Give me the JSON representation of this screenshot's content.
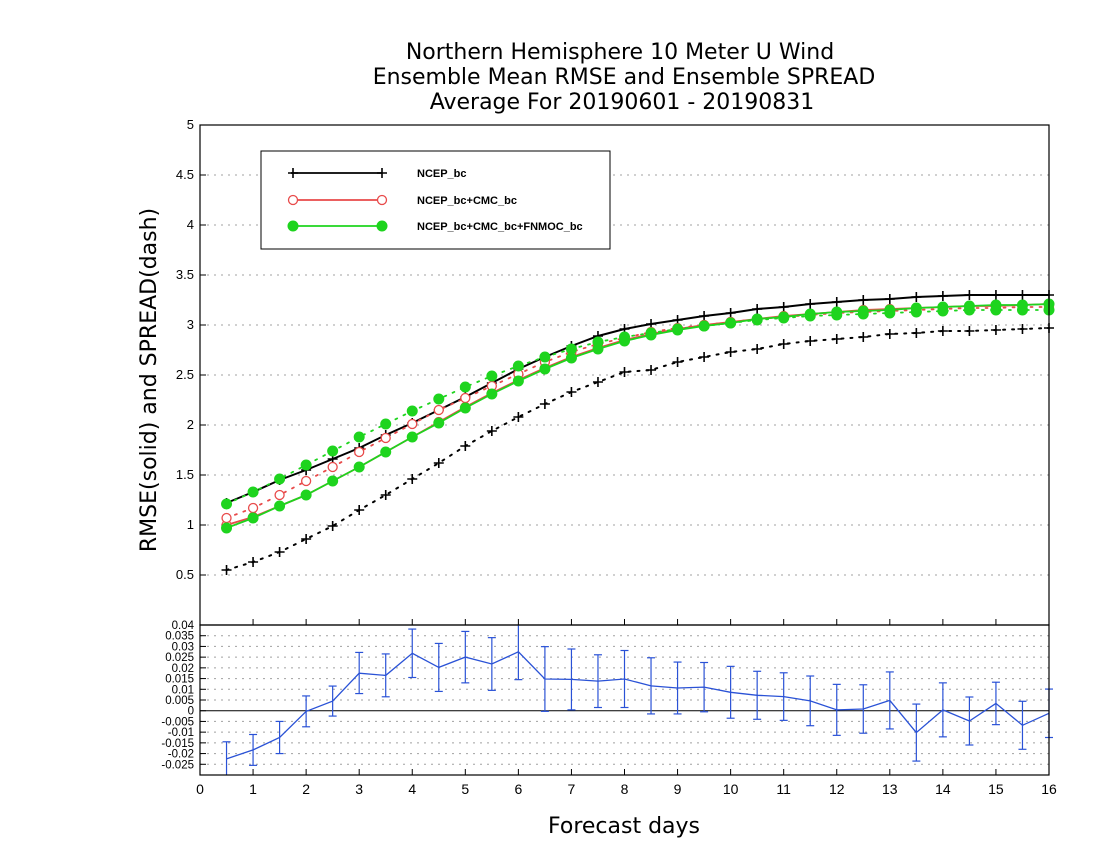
{
  "chart_data": [
    {
      "type": "line",
      "title": [
        "Northern Hemisphere 10 Meter U Wind",
        "Ensemble Mean RMSE and Ensemble SPREAD",
        "Average For 20190601 - 20190831"
      ],
      "ylabel": "RMSE(solid)  and  SPREAD(dash)",
      "xlabel": "Forecast days",
      "xlim": [
        0,
        16
      ],
      "ylim": [
        0,
        5
      ],
      "xticks": [
        "0",
        "1",
        "2",
        "3",
        "4",
        "5",
        "6",
        "7",
        "8",
        "9",
        "10",
        "11",
        "12",
        "13",
        "14",
        "15",
        "16"
      ],
      "yticks": [
        "0.5",
        "1",
        "1.5",
        "2",
        "2.5",
        "3",
        "3.5",
        "4",
        "4.5",
        "5"
      ],
      "grid": true,
      "legend_position": "top-left",
      "x": [
        0.5,
        1,
        1.5,
        2,
        2.5,
        3,
        3.5,
        4,
        4.5,
        5,
        5.5,
        6,
        6.5,
        7,
        7.5,
        8,
        8.5,
        9,
        9.5,
        10,
        10.5,
        11,
        11.5,
        12,
        12.5,
        13,
        13.5,
        14,
        14.5,
        15,
        15.5,
        16
      ],
      "series": [
        {
          "name": "NCEP_bc",
          "color": "#000000",
          "marker": "plus",
          "rmse": [
            1.22,
            1.33,
            1.45,
            1.55,
            1.66,
            1.77,
            1.9,
            2.02,
            2.15,
            2.28,
            2.42,
            2.56,
            2.68,
            2.79,
            2.89,
            2.96,
            3.01,
            3.05,
            3.09,
            3.12,
            3.16,
            3.18,
            3.21,
            3.23,
            3.25,
            3.26,
            3.28,
            3.29,
            3.3,
            3.3,
            3.3,
            3.3
          ],
          "spread": [
            0.55,
            0.63,
            0.73,
            0.86,
            0.99,
            1.15,
            1.3,
            1.46,
            1.62,
            1.79,
            1.94,
            2.08,
            2.21,
            2.33,
            2.43,
            2.53,
            2.55,
            2.63,
            2.68,
            2.73,
            2.76,
            2.81,
            2.84,
            2.86,
            2.88,
            2.91,
            2.92,
            2.94,
            2.94,
            2.95,
            2.96,
            2.97
          ]
        },
        {
          "name": "NCEP_bc+CMC_bc",
          "color": "#e84a4a",
          "marker": "open-circle",
          "rmse": [
            1.0,
            1.08,
            1.19,
            1.3,
            1.44,
            1.58,
            1.73,
            1.88,
            2.03,
            2.18,
            2.32,
            2.45,
            2.57,
            2.68,
            2.77,
            2.85,
            2.91,
            2.96,
            3.0,
            3.03,
            3.06,
            3.09,
            3.11,
            3.13,
            3.15,
            3.16,
            3.17,
            3.18,
            3.19,
            3.19,
            3.2,
            3.21
          ],
          "spread": [
            1.07,
            1.17,
            1.3,
            1.44,
            1.58,
            1.73,
            1.87,
            2.01,
            2.15,
            2.27,
            2.39,
            2.51,
            2.63,
            2.73,
            2.81,
            2.87,
            2.93,
            2.97,
            3.0,
            3.03,
            3.06,
            3.08,
            3.1,
            3.12,
            3.13,
            3.14,
            3.15,
            3.16,
            3.17,
            3.17,
            3.18,
            3.18
          ]
        },
        {
          "name": "NCEP_bc+CMC_bc+FNMOC_bc",
          "color": "#1ed41e",
          "marker": "filled-circle",
          "rmse": [
            0.97,
            1.07,
            1.19,
            1.3,
            1.44,
            1.58,
            1.73,
            1.88,
            2.02,
            2.17,
            2.31,
            2.44,
            2.56,
            2.67,
            2.76,
            2.84,
            2.9,
            2.95,
            2.99,
            3.02,
            3.06,
            3.08,
            3.11,
            3.13,
            3.14,
            3.15,
            3.17,
            3.18,
            3.19,
            3.2,
            3.2,
            3.21
          ],
          "spread": [
            1.21,
            1.33,
            1.46,
            1.6,
            1.74,
            1.88,
            2.01,
            2.14,
            2.26,
            2.38,
            2.49,
            2.59,
            2.68,
            2.76,
            2.83,
            2.88,
            2.92,
            2.96,
            2.99,
            3.02,
            3.05,
            3.07,
            3.09,
            3.1,
            3.11,
            3.12,
            3.13,
            3.14,
            3.15,
            3.15,
            3.15,
            3.15
          ]
        }
      ]
    },
    {
      "type": "line",
      "xlabel": "Forecast days",
      "xlim": [
        0,
        16
      ],
      "ylim": [
        -0.03,
        0.04
      ],
      "yticks": [
        "-0.025",
        "-0.02",
        "-0.015",
        "-0.01",
        "-0.005",
        "0",
        "0.005",
        "0.01",
        "0.015",
        "0.02",
        "0.025",
        "0.03",
        "0.035",
        "0.04"
      ],
      "zero_line": true,
      "grid": true,
      "color": "#2a52d6",
      "x": [
        0.5,
        1,
        1.5,
        2,
        2.5,
        3,
        3.5,
        4,
        4.5,
        5,
        5.5,
        6,
        6.5,
        7,
        7.5,
        8,
        8.5,
        9,
        9.5,
        10,
        10.5,
        11,
        11.5,
        12,
        12.5,
        13,
        13.5,
        14,
        14.5,
        15,
        15.5,
        16
      ],
      "values": [
        -0.0225,
        -0.0183,
        -0.0125,
        -0.0003,
        0.0045,
        0.0175,
        0.0165,
        0.0268,
        0.0202,
        0.025,
        0.0218,
        0.0275,
        0.0148,
        0.0146,
        0.0138,
        0.0148,
        0.0116,
        0.0106,
        0.011,
        0.0086,
        0.0072,
        0.0066,
        0.0046,
        0.0004,
        0.0008,
        0.0048,
        -0.0102,
        0.0004,
        -0.0048,
        0.0034,
        -0.0068,
        -0.0012
      ],
      "error_low": [
        -0.0305,
        -0.0255,
        -0.02,
        -0.0075,
        -0.0025,
        0.008,
        0.0065,
        0.0155,
        0.009,
        0.013,
        0.0095,
        0.0145,
        -0.0003,
        0.0004,
        0.0015,
        0.0015,
        -0.0015,
        -0.0015,
        -0.0005,
        -0.0035,
        -0.004,
        -0.0045,
        -0.007,
        -0.0115,
        -0.0105,
        -0.0085,
        -0.0235,
        -0.0122,
        -0.016,
        -0.0065,
        -0.018,
        -0.0125
      ],
      "error_high": [
        -0.0145,
        -0.0111,
        -0.005,
        0.0069,
        0.0115,
        0.0272,
        0.0265,
        0.0381,
        0.0314,
        0.037,
        0.0341,
        0.0405,
        0.0299,
        0.0288,
        0.0261,
        0.0281,
        0.0247,
        0.0227,
        0.0225,
        0.0207,
        0.0184,
        0.0177,
        0.0162,
        0.0123,
        0.0121,
        0.0181,
        0.0031,
        0.013,
        0.0064,
        0.0133,
        0.0044,
        0.0101
      ]
    }
  ]
}
